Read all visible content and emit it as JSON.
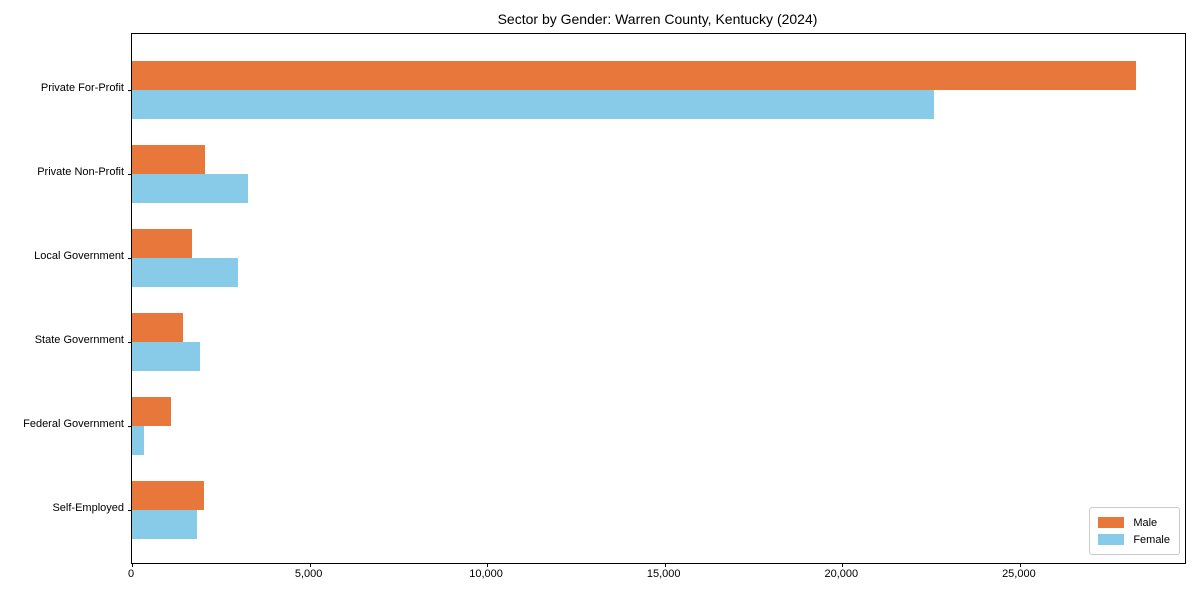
{
  "chart_data": {
    "type": "bar",
    "orientation": "horizontal",
    "title": "Sector by Gender: Warren County, Kentucky (2024)",
    "categories": [
      "Private For-Profit",
      "Private Non-Profit",
      "Local Government",
      "State Government",
      "Federal Government",
      "Self-Employed"
    ],
    "series": [
      {
        "name": "Male",
        "color": "#e8773b",
        "values": [
          28280,
          2055,
          1690,
          1435,
          1100,
          2030
        ]
      },
      {
        "name": "Female",
        "color": "#87cbe8",
        "values": [
          22580,
          3265,
          2985,
          1915,
          340,
          1830
        ]
      }
    ],
    "xlabel": "",
    "ylabel": "",
    "xlim": [
      0,
      29650
    ],
    "xticks": [
      0,
      5000,
      10000,
      15000,
      20000,
      25000
    ],
    "xtick_labels": [
      "0",
      "5,000",
      "10,000",
      "15,000",
      "20,000",
      "25,000"
    ],
    "grid": false,
    "legend": {
      "position": "lower right"
    }
  }
}
